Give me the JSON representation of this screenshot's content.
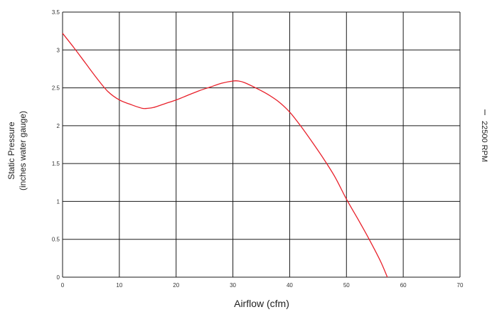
{
  "chart_data": {
    "type": "line",
    "title": "",
    "xlabel": "Airflow (cfm)",
    "ylabel_line1": "Static Pressure",
    "ylabel_line2": "(inches water gauge)",
    "xlim": [
      0,
      70
    ],
    "ylim": [
      0,
      3.5
    ],
    "x_ticks": [
      0,
      10,
      20,
      30,
      40,
      50,
      60,
      70
    ],
    "y_ticks": [
      0,
      0.5,
      1,
      1.5,
      2,
      2.5,
      3,
      3.5
    ],
    "x_tick_labels": [
      "0",
      "10",
      "20",
      "30",
      "40",
      "50",
      "60",
      "70"
    ],
    "y_tick_labels": [
      "0",
      "0.5",
      "1",
      "1.5",
      "2",
      "2.5",
      "3",
      "3.5"
    ],
    "grid": true,
    "legend_position": "right, vertical",
    "series": [
      {
        "name": "22500 RPM",
        "color": "#e8202a",
        "x": [
          0,
          2,
          4,
          6,
          8,
          10,
          12,
          14,
          15,
          16,
          18,
          20,
          22,
          24,
          26,
          28,
          30,
          31,
          32,
          34,
          36,
          38,
          40,
          42,
          44,
          46,
          48,
          50,
          52,
          54,
          56,
          57.2
        ],
        "y": [
          3.22,
          3.03,
          2.83,
          2.63,
          2.45,
          2.34,
          2.28,
          2.23,
          2.23,
          2.24,
          2.29,
          2.34,
          2.4,
          2.46,
          2.51,
          2.56,
          2.59,
          2.59,
          2.57,
          2.5,
          2.42,
          2.32,
          2.18,
          1.99,
          1.78,
          1.56,
          1.32,
          1.03,
          0.77,
          0.5,
          0.21,
          0.0
        ]
      }
    ]
  }
}
